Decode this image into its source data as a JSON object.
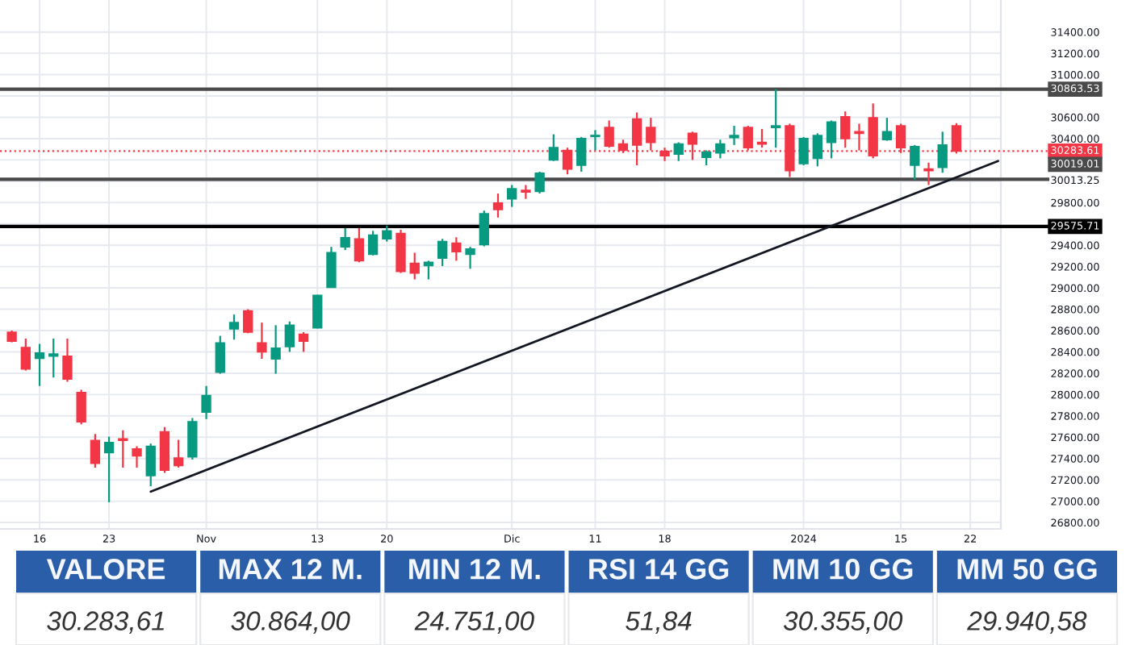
{
  "chart_data": {
    "type": "candlestick",
    "categories": [
      null,
      null,
      "16",
      null,
      null,
      null,
      null,
      "23",
      null,
      null,
      null,
      null,
      null,
      null,
      "Nov",
      null,
      null,
      null,
      null,
      null,
      null,
      null,
      "13",
      null,
      null,
      null,
      null,
      "20",
      null,
      null,
      null,
      null,
      null,
      null,
      null,
      null,
      "Dic",
      null,
      null,
      null,
      null,
      null,
      "11",
      null,
      null,
      null,
      null,
      "18",
      null,
      null,
      null,
      null,
      null,
      null,
      null,
      null,
      null,
      "2024",
      null,
      null,
      null,
      null,
      null,
      null,
      "15",
      null,
      null,
      null,
      null,
      "22",
      null,
      null
    ],
    "ohlc": [
      [
        28585,
        28600,
        28490,
        28500
      ],
      [
        28440,
        28525,
        28225,
        28240
      ],
      [
        28340,
        28475,
        28080,
        28390
      ],
      [
        28360,
        28525,
        28160,
        28380
      ],
      [
        28360,
        28525,
        28120,
        28145
      ],
      [
        28020,
        28045,
        27720,
        27745
      ],
      [
        27570,
        27630,
        27315,
        27355
      ],
      [
        27455,
        27605,
        26990,
        27550
      ],
      [
        27585,
        27665,
        27315,
        27570
      ],
      [
        27490,
        27515,
        27315,
        27425
      ],
      [
        27240,
        27540,
        27140,
        27515
      ],
      [
        27650,
        27695,
        27265,
        27290
      ],
      [
        27405,
        27575,
        27315,
        27335
      ],
      [
        27415,
        27780,
        27390,
        27745
      ],
      [
        27835,
        28080,
        27770,
        27990
      ],
      [
        28210,
        28550,
        28195,
        28485
      ],
      [
        28615,
        28750,
        28515,
        28675
      ],
      [
        28785,
        28800,
        28575,
        28585
      ],
      [
        28485,
        28675,
        28335,
        28400
      ],
      [
        28335,
        28650,
        28195,
        28435
      ],
      [
        28450,
        28685,
        28400,
        28650
      ],
      [
        28565,
        28585,
        28400,
        28500
      ],
      [
        28625,
        28935,
        28620,
        28930
      ],
      [
        29005,
        29385,
        29000,
        29330
      ],
      [
        29385,
        29560,
        29355,
        29470
      ],
      [
        29460,
        29560,
        29240,
        29255
      ],
      [
        29315,
        29535,
        29305,
        29495
      ],
      [
        29460,
        29585,
        29435,
        29535
      ],
      [
        29510,
        29545,
        29140,
        29155
      ],
      [
        29230,
        29330,
        29080,
        29140
      ],
      [
        29210,
        29255,
        29080,
        29240
      ],
      [
        29280,
        29460,
        29205,
        29435
      ],
      [
        29420,
        29475,
        29255,
        29340
      ],
      [
        29315,
        29385,
        29180,
        29365
      ],
      [
        29405,
        29725,
        29390,
        29695
      ],
      [
        29795,
        29885,
        29660,
        29735
      ],
      [
        29835,
        29965,
        29760,
        29930
      ],
      [
        29915,
        29965,
        29835,
        29900
      ],
      [
        29905,
        30090,
        29885,
        30075
      ],
      [
        30200,
        30440,
        30190,
        30315
      ],
      [
        30290,
        30315,
        30065,
        30115
      ],
      [
        30150,
        30415,
        30090,
        30400
      ],
      [
        30420,
        30480,
        30290,
        30430
      ],
      [
        30505,
        30570,
        30315,
        30330
      ],
      [
        30350,
        30390,
        30265,
        30290
      ],
      [
        30585,
        30645,
        30150,
        30340
      ],
      [
        30505,
        30595,
        30290,
        30365
      ],
      [
        30280,
        30315,
        30190,
        30240
      ],
      [
        30255,
        30365,
        30190,
        30350
      ],
      [
        30450,
        30465,
        30200,
        30350
      ],
      [
        30225,
        30290,
        30150,
        30275
      ],
      [
        30265,
        30390,
        30215,
        30350
      ],
      [
        30410,
        30520,
        30340,
        30430
      ],
      [
        30505,
        30520,
        30290,
        30315
      ],
      [
        30365,
        30490,
        30315,
        30350
      ],
      [
        30505,
        30864,
        30315,
        30520
      ],
      [
        30520,
        30540,
        30040,
        30100
      ],
      [
        30165,
        30415,
        30150,
        30400
      ],
      [
        30215,
        30450,
        30140,
        30430
      ],
      [
        30365,
        30570,
        30215,
        30555
      ],
      [
        30605,
        30655,
        30315,
        30400
      ],
      [
        30465,
        30540,
        30290,
        30450
      ],
      [
        30595,
        30730,
        30215,
        30240
      ],
      [
        30390,
        30595,
        30380,
        30465
      ],
      [
        30520,
        30540,
        30265,
        30315
      ],
      [
        30150,
        30340,
        30015,
        30325
      ],
      [
        30115,
        30175,
        29965,
        30100
      ],
      [
        30130,
        30465,
        30080,
        30340
      ],
      [
        30520,
        30545,
        30260,
        30283.61
      ],
      null,
      null,
      null
    ],
    "colors": [
      "#f23645",
      "#f23645",
      "#089981",
      "#089981",
      "#f23645",
      "#f23645",
      "#f23645",
      "#089981",
      "#f23645",
      "#f23645",
      "#089981",
      "#f23645",
      "#f23645",
      "#089981",
      "#089981",
      "#089981",
      "#089981",
      "#f23645",
      "#f23645",
      "#089981",
      "#089981",
      "#f23645",
      "#089981",
      "#089981",
      "#089981",
      "#f23645",
      "#089981",
      "#089981",
      "#f23645",
      "#f23645",
      "#089981",
      "#089981",
      "#f23645",
      "#089981",
      "#089981",
      "#f23645",
      "#089981",
      "#f23645",
      "#089981",
      "#089981",
      "#f23645",
      "#089981",
      "#089981",
      "#f23645",
      "#f23645",
      "#f23645",
      "#f23645",
      "#f23645",
      "#089981",
      "#f23645",
      "#089981",
      "#089981",
      "#089981",
      "#f23645",
      "#f23645",
      "#089981",
      "#f23645",
      "#089981",
      "#089981",
      "#089981",
      "#f23645",
      "#f23645",
      "#f23645",
      "#089981",
      "#f23645",
      "#089981",
      "#f23645",
      "#089981",
      "#f23645",
      null,
      null,
      null
    ],
    "series": [
      {
        "type": "line",
        "color": "#131722",
        "values": [
          null,
          null,
          null,
          null,
          null,
          null,
          null,
          null,
          null,
          null,
          27090,
          null,
          null,
          null,
          null,
          null,
          null,
          null,
          null,
          null,
          null,
          null,
          null,
          null,
          null,
          null,
          null,
          null,
          null,
          null,
          null,
          null,
          null,
          null,
          null,
          null,
          null,
          null,
          null,
          null,
          null,
          null,
          null,
          null,
          null,
          null,
          null,
          null,
          null,
          null,
          null,
          null,
          null,
          null,
          null,
          null,
          null,
          null,
          null,
          null,
          null,
          null,
          null,
          null,
          null,
          null,
          null,
          null,
          null,
          null,
          null,
          30190
        ]
      }
    ],
    "ylim": [
      26740,
      31700
    ],
    "yticks": [
      {
        "value": 26800,
        "label": "26800.00"
      },
      {
        "value": 27000,
        "label": "27000.00"
      },
      {
        "value": 27200,
        "label": "27200.00"
      },
      {
        "value": 27400,
        "label": "27400.00"
      },
      {
        "value": 27600,
        "label": "27600.00"
      },
      {
        "value": 27800,
        "label": "27800.00"
      },
      {
        "value": 28000,
        "label": "28000.00"
      },
      {
        "value": 28200,
        "label": "28200.00"
      },
      {
        "value": 28400,
        "label": "28400.00"
      },
      {
        "value": 28600,
        "label": "28600.00"
      },
      {
        "value": 28800,
        "label": "28800.00"
      },
      {
        "value": 29000,
        "label": "29000.00"
      },
      {
        "value": 29200,
        "label": "29200.00"
      },
      {
        "value": 29400,
        "label": "29400.00"
      },
      {
        "value": 29600,
        "label": null
      },
      {
        "value": 29800,
        "label": "29800.00"
      },
      {
        "value": 30000,
        "label": null
      },
      {
        "value": 30013.25,
        "label": "30013.25"
      },
      {
        "value": 30200,
        "label": null
      },
      {
        "value": 30400,
        "label": "30400.00"
      },
      {
        "value": 30600,
        "label": "30600.00"
      },
      {
        "value": 30800,
        "label": null
      },
      {
        "value": 31000,
        "label": "31000.00"
      },
      {
        "value": 31200,
        "label": "31200.00"
      },
      {
        "value": 31400,
        "label": "31400.00"
      }
    ],
    "ref_lines": [
      {
        "axis": "y",
        "value": 30863.53,
        "label": "30863.53",
        "color": "#4a4a4a"
      },
      {
        "axis": "y",
        "value": 30283.61,
        "label": "30283.61",
        "color": "#f23645",
        "line_style": "dotted"
      },
      {
        "axis": "y",
        "value": 30019.01,
        "label": "30019.01",
        "color": "#4a4a4a"
      },
      {
        "axis": "y",
        "value": 29575.71,
        "label": "29575.71",
        "color": "#000000"
      }
    ],
    "annotations": [
      "VALORE",
      "30.283,61",
      "MAX 12 M.",
      "30.864,00",
      "MIN 12 M.",
      "24.751,00",
      "RSI 14 GG",
      "51,84",
      "MM 10 GG",
      "30.355,00",
      "MM 50 GG",
      "29.940,58"
    ],
    "grid": true
  }
}
